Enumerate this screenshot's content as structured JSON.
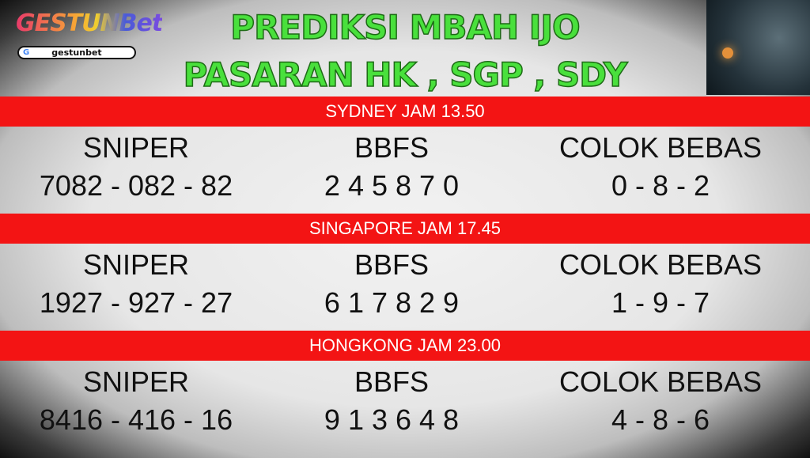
{
  "logo": {
    "text": "GESTUNBet",
    "search_text": "gestunbet"
  },
  "title": {
    "line1": "PREDIKSI MBAH IJO",
    "line2": "PASARAN HK , SGP , SDY"
  },
  "colors": {
    "title_green": "#49e03c",
    "band_red": "#f31414"
  },
  "markets": [
    {
      "name": "SYDNEY JAM 13.50",
      "labels": [
        "SNIPER",
        "BBFS",
        "COLOK BEBAS"
      ],
      "values": [
        "7082 - 082 - 82",
        "2 4 5 8 7 0",
        "0 - 8 - 2"
      ]
    },
    {
      "name": "SINGAPORE JAM 17.45",
      "labels": [
        "SNIPER",
        "BBFS",
        "COLOK BEBAS"
      ],
      "values": [
        "1927 - 927 - 27",
        "6 1 7 8 2 9",
        "1 - 9 - 7"
      ]
    },
    {
      "name": "HONGKONG JAM 23.00",
      "labels": [
        "SNIPER",
        "BBFS",
        "COLOK BEBAS"
      ],
      "values": [
        "8416 - 416 - 16",
        "9 1 3 6 4 8",
        "4 - 8 - 6"
      ]
    }
  ]
}
